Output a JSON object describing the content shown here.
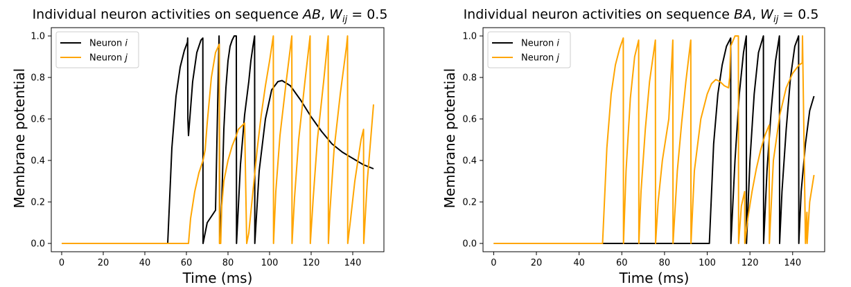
{
  "colors": {
    "neuron_i": "#000000",
    "neuron_j": "#FFA500"
  },
  "chart_data": [
    {
      "type": "line",
      "title": "Individual neuron activities on sequence AB, W_ij = 0.5",
      "title_parts": [
        "Individual neuron activities on sequence ",
        "AB",
        ", ",
        "W",
        "ij",
        " = 0.5"
      ],
      "xlabel": "Time (ms)",
      "ylabel": "Membrane potential",
      "xlim": [
        -5,
        155
      ],
      "ylim": [
        -0.04,
        1.04
      ],
      "xticks": [
        0,
        20,
        40,
        60,
        80,
        100,
        120,
        140
      ],
      "yticks": [
        0.0,
        0.2,
        0.4,
        0.6,
        0.8,
        1.0
      ],
      "legend_position": "top-left",
      "series": [
        {
          "name": "Neuron i",
          "name_base": "Neuron ",
          "name_sub": "i",
          "color": "#000000",
          "x": [
            0,
            51,
            53,
            55,
            57,
            59,
            60.5,
            60.6,
            60.7,
            61,
            63,
            65,
            67,
            67.9,
            68,
            70,
            72,
            74,
            75.7,
            75.8,
            76,
            77,
            78,
            79,
            80,
            81,
            82,
            83,
            84,
            84.1,
            86,
            88,
            90,
            91,
            92,
            92.8,
            92.9,
            95,
            98,
            101,
            104,
            106,
            110,
            115,
            120,
            125,
            130,
            135,
            140,
            145,
            150
          ],
          "y": [
            0,
            0,
            0.46,
            0.71,
            0.85,
            0.93,
            0.97,
            0.99,
            0.6,
            0.52,
            0.78,
            0.92,
            0.98,
            0.99,
            0.0,
            0.1,
            0.13,
            0.16,
            1.0,
            0.92,
            0.0,
            0.2,
            0.55,
            0.75,
            0.88,
            0.95,
            0.98,
            1.0,
            1.0,
            0.0,
            0.38,
            0.62,
            0.78,
            0.88,
            0.95,
            1.0,
            0.0,
            0.35,
            0.6,
            0.74,
            0.78,
            0.785,
            0.76,
            0.69,
            0.61,
            0.54,
            0.48,
            0.44,
            0.41,
            0.38,
            0.36
          ]
        },
        {
          "name": "Neuron j",
          "name_base": "Neuron ",
          "name_sub": "j",
          "color": "#FFA500",
          "x": [
            0,
            61,
            62,
            64,
            66,
            68,
            69,
            70,
            72,
            74,
            75.8,
            75.9,
            76.5,
            77,
            78,
            80,
            82,
            84,
            85,
            86,
            87,
            88,
            89,
            90,
            92,
            94,
            96,
            98,
            100,
            101.8,
            101.9,
            103,
            105,
            108,
            110.7,
            110.8,
            112,
            114,
            117,
            119.5,
            119.6,
            121,
            123,
            126,
            128.2,
            128.3,
            129,
            131,
            134,
            137,
            137.5,
            137.6,
            139,
            141,
            144,
            145.2,
            145.3,
            147,
            150
          ],
          "y": [
            0,
            0,
            0.12,
            0.25,
            0.34,
            0.4,
            0.45,
            0.58,
            0.8,
            0.92,
            0.96,
            0.0,
            0.0,
            0.18,
            0.3,
            0.4,
            0.47,
            0.52,
            0.55,
            0.56,
            0.57,
            0.58,
            0.0,
            0.05,
            0.25,
            0.45,
            0.62,
            0.76,
            0.88,
            1.0,
            0.0,
            0.25,
            0.52,
            0.78,
            1.0,
            0.0,
            0.22,
            0.5,
            0.78,
            1.0,
            0.0,
            0.22,
            0.5,
            0.78,
            1.0,
            0.0,
            0.15,
            0.45,
            0.72,
            0.95,
            1.0,
            0.0,
            0.12,
            0.3,
            0.5,
            0.55,
            0.0,
            0.3,
            0.67
          ]
        }
      ]
    },
    {
      "type": "line",
      "title": "Individual neuron activities on sequence BA, W_ij = 0.5",
      "title_parts": [
        "Individual neuron activities on sequence ",
        "BA",
        ", ",
        "W",
        "ij",
        " = 0.5"
      ],
      "xlabel": "Time (ms)",
      "ylabel": "Membrane potential",
      "xlim": [
        -5,
        155
      ],
      "ylim": [
        -0.04,
        1.04
      ],
      "xticks": [
        0,
        20,
        40,
        60,
        80,
        100,
        120,
        140
      ],
      "yticks": [
        0.0,
        0.2,
        0.4,
        0.6,
        0.8,
        1.0
      ],
      "legend_position": "top-left",
      "series": [
        {
          "name": "Neuron i",
          "name_base": "Neuron ",
          "name_sub": "i",
          "color": "#000000",
          "x": [
            0,
            101,
            103,
            105,
            107,
            109,
            111,
            111.1,
            113,
            115,
            117,
            118.3,
            118.4,
            120,
            122,
            124,
            126.3,
            126.4,
            128,
            130,
            132,
            133.8,
            133.9,
            135,
            137,
            139,
            141,
            142.8,
            142.9,
            144,
            146,
            148,
            150
          ],
          "y": [
            0,
            0,
            0.48,
            0.72,
            0.86,
            0.95,
            0.99,
            0.0,
            0.4,
            0.72,
            0.92,
            1.0,
            0.0,
            0.4,
            0.72,
            0.92,
            1.0,
            0.0,
            0.35,
            0.65,
            0.88,
            1.0,
            0.0,
            0.25,
            0.55,
            0.8,
            0.95,
            1.0,
            0.0,
            0.25,
            0.48,
            0.64,
            0.71
          ]
        },
        {
          "name": "Neuron j",
          "name_base": "Neuron ",
          "name_sub": "j",
          "color": "#FFA500",
          "x": [
            0,
            51,
            53,
            55,
            57,
            59,
            60.7,
            60.8,
            62,
            64,
            66,
            67.9,
            68,
            69,
            71,
            73,
            75.7,
            75.8,
            77,
            79,
            82,
            83.9,
            84,
            86,
            88,
            90,
            92.3,
            92.4,
            94,
            97,
            100,
            102,
            104,
            106,
            108,
            110,
            110.5,
            111,
            113,
            114.6,
            114.7,
            116,
            117.5,
            117.6,
            119,
            121,
            123,
            125,
            127,
            129,
            129.1,
            131,
            134,
            137,
            140,
            143,
            144.5,
            144.6,
            146,
            146.7,
            146.8,
            148,
            150
          ],
          "y": [
            0,
            0,
            0.46,
            0.72,
            0.86,
            0.94,
            0.99,
            0.0,
            0.35,
            0.7,
            0.9,
            0.98,
            0.0,
            0.25,
            0.55,
            0.78,
            0.98,
            0.0,
            0.2,
            0.4,
            0.6,
            0.98,
            0.0,
            0.35,
            0.58,
            0.78,
            0.98,
            0.0,
            0.35,
            0.6,
            0.72,
            0.77,
            0.79,
            0.78,
            0.76,
            0.75,
            0.8,
            0.95,
            1.0,
            1.0,
            0.0,
            0.18,
            0.25,
            0.0,
            0.12,
            0.25,
            0.36,
            0.45,
            0.52,
            0.57,
            0.0,
            0.4,
            0.62,
            0.75,
            0.82,
            0.86,
            0.87,
            1.0,
            0.0,
            0.15,
            0.0,
            0.2,
            0.33
          ]
        }
      ]
    }
  ]
}
